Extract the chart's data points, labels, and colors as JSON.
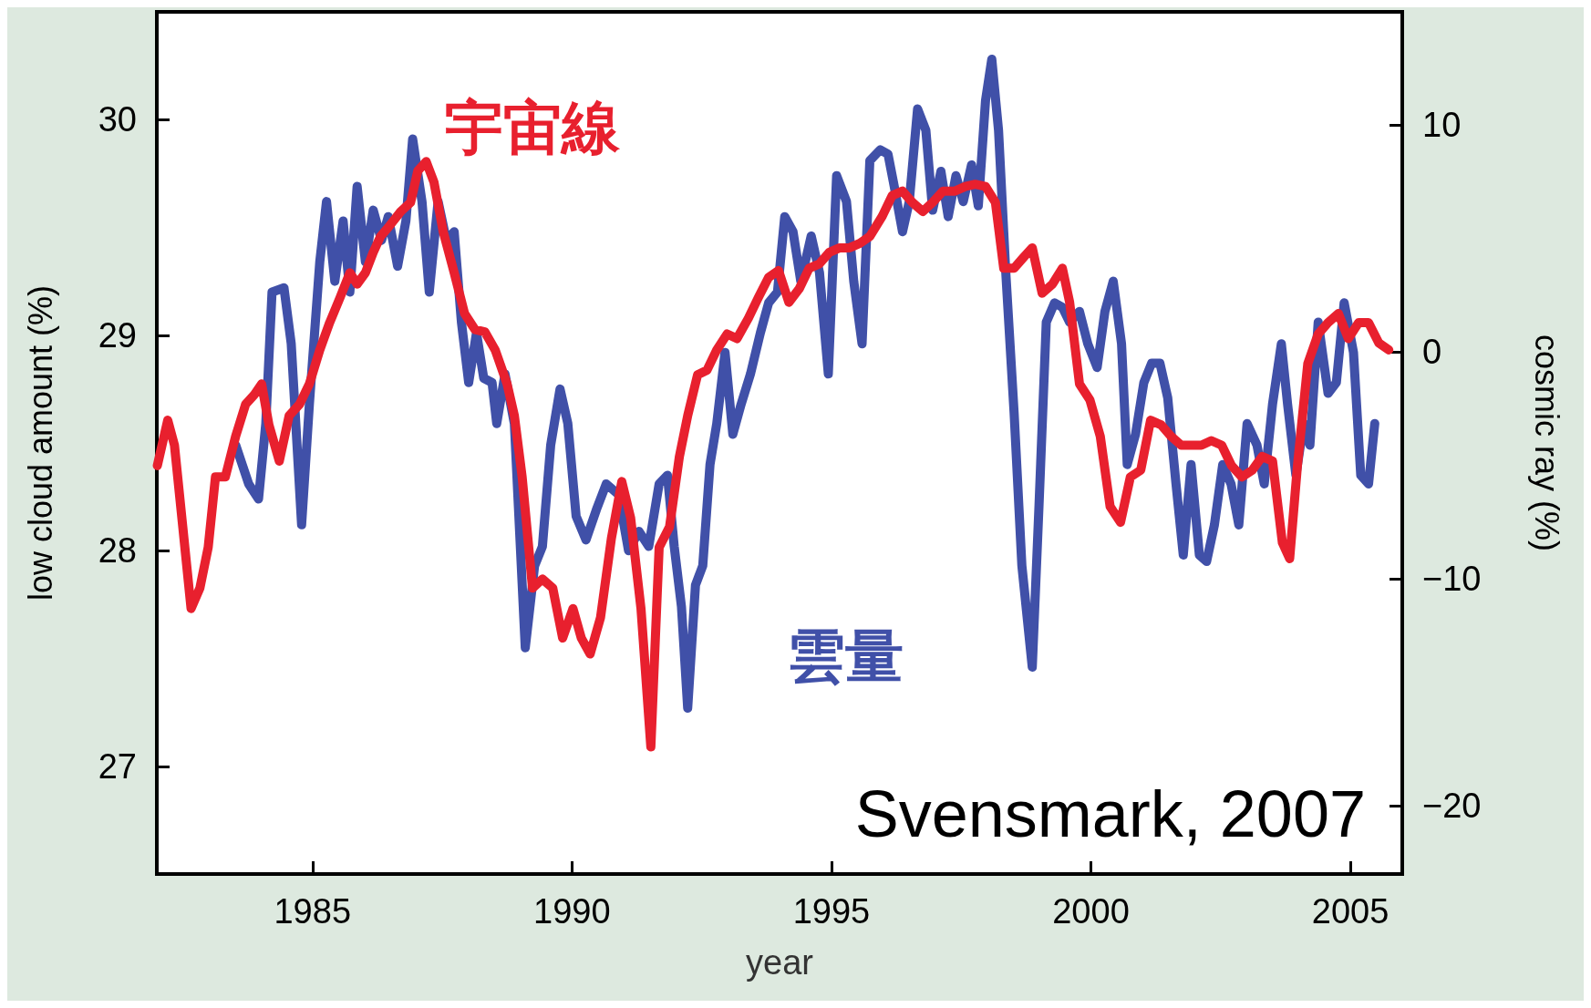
{
  "chart_data": {
    "type": "line",
    "xlabel": "year",
    "ylabel": "low cloud amount (%)",
    "y2label": "cosmic ray (%)",
    "xlim": [
      1982,
      2006
    ],
    "xticks": [
      1985,
      1990,
      1995,
      2000,
      2005
    ],
    "ylim": [
      26.5,
      30.5
    ],
    "yticks": [
      27,
      28,
      29,
      30
    ],
    "y2lim": [
      -23,
      15
    ],
    "y2ticks": [
      -20,
      -10,
      0,
      10
    ],
    "annotations": [
      "Svensmark, 2007"
    ],
    "series": [
      {
        "name": "雲量",
        "color": "#4050a8",
        "x": [
          1983.52,
          1983.77,
          1983.96,
          1984.1,
          1984.22,
          1984.45,
          1984.59,
          1984.79,
          1984.94,
          1985.14,
          1985.27,
          1985.43,
          1985.59,
          1985.72,
          1985.86,
          1986.02,
          1986.17,
          1986.33,
          1986.46,
          1986.64,
          1986.8,
          1986.93,
          1987.11,
          1987.25,
          1987.42,
          1987.58,
          1987.73,
          1987.87,
          1988.01,
          1988.16,
          1988.3,
          1988.46,
          1988.55,
          1988.71,
          1988.89,
          1989.1,
          1989.28,
          1989.43,
          1989.59,
          1989.77,
          1989.92,
          1990.08,
          1990.27,
          1990.47,
          1990.66,
          1990.9,
          1991.09,
          1991.29,
          1991.48,
          1991.68,
          1991.84,
          1991.97,
          1992.11,
          1992.23,
          1992.38,
          1992.52,
          1992.66,
          1992.79,
          1992.95,
          1993.1,
          1993.26,
          1993.44,
          1993.63,
          1993.79,
          1993.96,
          1994.1,
          1994.26,
          1994.41,
          1994.61,
          1994.77,
          1994.94,
          1995.1,
          1995.29,
          1995.43,
          1995.59,
          1995.74,
          1995.94,
          1996.09,
          1996.21,
          1996.37,
          1996.5,
          1996.66,
          1996.82,
          1996.95,
          1997.11,
          1997.25,
          1997.4,
          1997.54,
          1997.7,
          1997.83,
          1997.97,
          1998.09,
          1998.22,
          1998.36,
          1998.52,
          1998.67,
          1998.87,
          1999.0,
          1999.14,
          1999.3,
          1999.45,
          1999.59,
          1999.78,
          1999.94,
          2000.12,
          2000.27,
          2000.43,
          2000.59,
          2000.7,
          2000.86,
          2001.02,
          2001.17,
          2001.33,
          2001.48,
          2001.64,
          2001.78,
          2001.93,
          2002.09,
          2002.23,
          2002.38,
          2002.54,
          2002.7,
          2002.85,
          2003.01,
          2003.2,
          2003.34,
          2003.5,
          2003.67,
          2003.79,
          2003.95,
          2004.1,
          2004.22,
          2004.38,
          2004.57,
          2004.73,
          2004.88,
          2005.06,
          2005.2,
          2005.35,
          2005.47
        ],
        "values": [
          28.49,
          28.31,
          28.24,
          28.59,
          29.2,
          29.22,
          28.96,
          28.12,
          28.68,
          29.34,
          29.62,
          29.25,
          29.53,
          29.2,
          29.69,
          29.34,
          29.58,
          29.44,
          29.55,
          29.32,
          29.53,
          29.91,
          29.62,
          29.2,
          29.62,
          29.44,
          29.48,
          29.06,
          28.78,
          29.01,
          28.8,
          28.78,
          28.59,
          28.82,
          28.59,
          27.55,
          27.93,
          28.02,
          28.49,
          28.75,
          28.59,
          28.16,
          28.05,
          28.19,
          28.31,
          28.26,
          28.0,
          28.09,
          28.02,
          28.31,
          28.35,
          28.02,
          27.74,
          27.27,
          27.84,
          27.93,
          28.4,
          28.59,
          28.92,
          28.54,
          28.68,
          28.82,
          29.01,
          29.15,
          29.2,
          29.55,
          29.48,
          29.25,
          29.46,
          29.29,
          28.82,
          29.74,
          29.62,
          29.25,
          28.96,
          29.81,
          29.86,
          29.84,
          29.69,
          29.48,
          29.62,
          30.05,
          29.95,
          29.58,
          29.76,
          29.55,
          29.74,
          29.62,
          29.79,
          29.6,
          30.09,
          30.28,
          29.95,
          29.29,
          28.64,
          27.93,
          27.46,
          28.21,
          29.06,
          29.15,
          29.13,
          29.06,
          29.11,
          28.96,
          28.85,
          29.11,
          29.25,
          28.96,
          28.4,
          28.54,
          28.78,
          28.87,
          28.87,
          28.71,
          28.31,
          27.98,
          28.4,
          27.98,
          27.95,
          28.12,
          28.4,
          28.31,
          28.12,
          28.59,
          28.49,
          28.31,
          28.68,
          28.96,
          28.68,
          28.35,
          28.59,
          28.49,
          29.06,
          28.73,
          28.78,
          29.15,
          28.92,
          28.35,
          28.31,
          28.59
        ]
      },
      {
        "name": "宇宙線",
        "color": "#e8202e",
        "axis": "y2",
        "x": [
          1982.01,
          1982.21,
          1982.34,
          1982.5,
          1982.66,
          1982.83,
          1982.99,
          1983.13,
          1983.32,
          1983.52,
          1983.71,
          1983.87,
          1984.02,
          1984.16,
          1984.36,
          1984.55,
          1984.75,
          1984.94,
          1985.14,
          1985.33,
          1985.53,
          1985.72,
          1985.86,
          1986.02,
          1986.17,
          1986.31,
          1986.46,
          1986.7,
          1986.89,
          1987.03,
          1987.19,
          1987.34,
          1987.52,
          1987.73,
          1987.93,
          1988.13,
          1988.32,
          1988.52,
          1988.75,
          1988.89,
          1989.04,
          1989.24,
          1989.43,
          1989.63,
          1989.82,
          1990.02,
          1990.18,
          1990.35,
          1990.55,
          1990.76,
          1990.96,
          1991.13,
          1991.33,
          1991.52,
          1991.68,
          1991.88,
          1992.07,
          1992.23,
          1992.42,
          1992.6,
          1992.79,
          1992.99,
          1993.18,
          1993.4,
          1993.59,
          1993.79,
          1993.98,
          1994.18,
          1994.38,
          1994.57,
          1994.77,
          1994.96,
          1995.16,
          1995.35,
          1995.55,
          1995.74,
          1995.98,
          1996.17,
          1996.37,
          1996.56,
          1996.76,
          1996.95,
          1997.15,
          1997.38,
          1997.58,
          1997.77,
          1997.97,
          1998.16,
          1998.32,
          1998.52,
          1998.71,
          1998.87,
          1999.06,
          1999.26,
          1999.45,
          1999.59,
          1999.78,
          1999.98,
          2000.18,
          2000.37,
          2000.57,
          2000.76,
          2000.96,
          2001.15,
          2001.35,
          2001.54,
          2001.74,
          2001.93,
          2002.13,
          2002.32,
          2002.52,
          2002.71,
          2002.91,
          2003.11,
          2003.3,
          2003.5,
          2003.69,
          2003.83,
          2003.98,
          2004.18,
          2004.38,
          2004.57,
          2004.77,
          2004.96,
          2005.16,
          2005.35,
          2005.55,
          2005.74
        ],
        "values": [
          -5.0,
          -3.0,
          -4.1,
          -7.7,
          -11.3,
          -10.4,
          -8.6,
          -5.5,
          -5.5,
          -3.7,
          -2.3,
          -1.9,
          -1.4,
          -3.2,
          -4.8,
          -2.8,
          -2.3,
          -1.4,
          0.1,
          1.3,
          2.4,
          3.5,
          3.0,
          3.5,
          4.4,
          5.1,
          5.5,
          6.2,
          6.6,
          8.0,
          8.4,
          7.5,
          5.3,
          3.5,
          1.7,
          1.0,
          0.9,
          0.1,
          -1.4,
          -2.8,
          -5.5,
          -10.4,
          -10.0,
          -10.4,
          -12.6,
          -11.3,
          -12.6,
          -13.3,
          -11.7,
          -8.2,
          -5.7,
          -7.3,
          -11.3,
          -17.4,
          -8.6,
          -7.7,
          -4.6,
          -2.8,
          -1.0,
          -0.8,
          0.1,
          0.8,
          0.6,
          1.5,
          2.4,
          3.3,
          3.6,
          2.2,
          2.8,
          3.7,
          3.9,
          4.4,
          4.6,
          4.6,
          4.8,
          5.1,
          6.0,
          6.9,
          7.1,
          6.6,
          6.2,
          6.6,
          7.1,
          7.1,
          7.3,
          7.4,
          7.3,
          6.6,
          3.7,
          3.7,
          4.2,
          4.6,
          2.6,
          3.0,
          3.7,
          2.2,
          -1.4,
          -2.1,
          -3.7,
          -6.8,
          -7.5,
          -5.5,
          -5.2,
          -3.0,
          -3.2,
          -3.7,
          -4.1,
          -4.1,
          -4.1,
          -3.9,
          -4.1,
          -5.0,
          -5.5,
          -5.2,
          -4.6,
          -4.8,
          -8.4,
          -9.1,
          -5.0,
          -0.5,
          0.8,
          1.3,
          1.7,
          0.6,
          1.3,
          1.3,
          0.4,
          0.1
        ]
      }
    ]
  }
}
